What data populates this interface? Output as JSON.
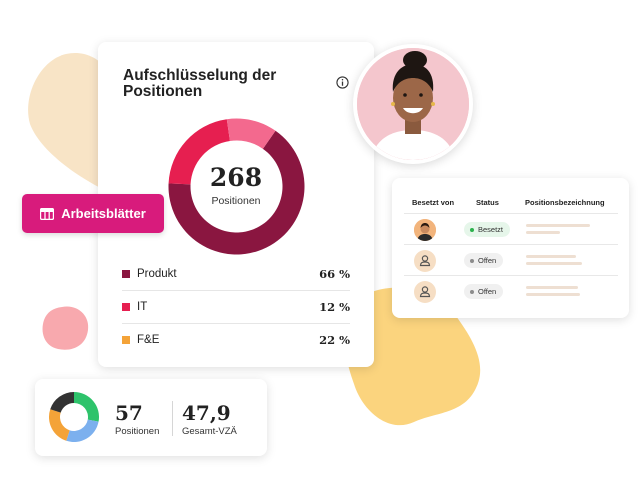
{
  "breakdown": {
    "title": "Aufschlüsselung der Positionen",
    "total": "268",
    "total_caption": "Positionen",
    "segments": [
      {
        "label": "Produkt",
        "value": "66 %",
        "percent": 66,
        "color": "#8a1640"
      },
      {
        "label": "IT",
        "value": "12 %",
        "percent": 12,
        "color": "#e61f50"
      },
      {
        "label": "F&E",
        "value": "22 %",
        "percent": 22,
        "color": "#f4a338"
      }
    ],
    "ring_segments": [
      {
        "percent": 66,
        "color": "#8a1640"
      },
      {
        "percent": 22,
        "color": "#e61f50"
      },
      {
        "percent": 12,
        "color": "#f3698e"
      }
    ]
  },
  "worksheet_button": {
    "label": "Arbeitsblätter",
    "color": "#d81b7c"
  },
  "table": {
    "headers": {
      "occupied_by": "Besetzt von",
      "status": "Status",
      "position": "Positionsbezeichnung"
    },
    "rows": [
      {
        "status": "Besetzt",
        "status_color": "#2bb24c",
        "avatar": "photo"
      },
      {
        "status": "Offen",
        "status_color": "#8c8c8c",
        "avatar": "person-icon"
      },
      {
        "status": "Offen",
        "status_color": "#8c8c8c",
        "avatar": "person-icon"
      }
    ]
  },
  "summary": {
    "positions": "57",
    "positions_caption": "Positionen",
    "fte": "47,9",
    "fte_caption": "Gesamt-VZÄ",
    "mini_segments": [
      {
        "percent": 28,
        "color": "#2ec36b"
      },
      {
        "percent": 27,
        "color": "#7cb0ee"
      },
      {
        "percent": 25,
        "color": "#f4a338"
      },
      {
        "percent": 20,
        "color": "#333333"
      }
    ]
  }
}
